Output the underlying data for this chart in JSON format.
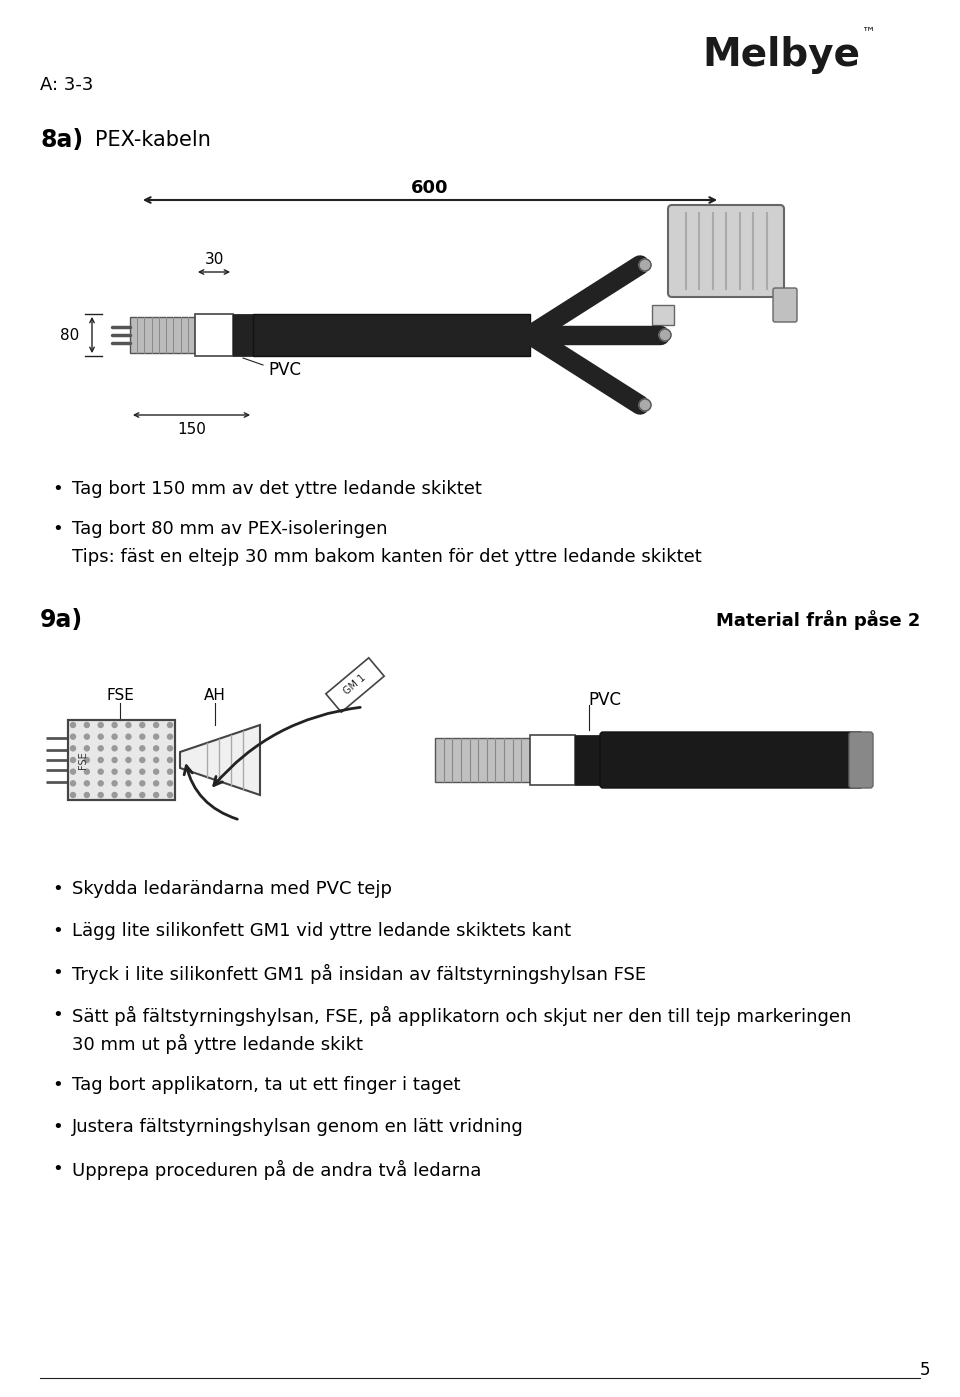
{
  "page_num": "5",
  "header_ref": "A: 3-3",
  "logo_text": "Melbye",
  "section8a_label": "8a)",
  "section8a_title": "PEX-kabeln",
  "dim_600": "600",
  "dim_30": "30",
  "dim_80": "80",
  "dim_150": "150",
  "label_PVC_8a": "PVC",
  "bullets_8a_line1": "Tag bort 150 mm av det yttre ledande skiktet",
  "bullets_8a_line2": "Tag bort 80 mm av PEX-isoleringen",
  "bullets_8a_line2b": "Tips: fäst en eltejp 30 mm bakom kanten för det yttre ledande skiktet",
  "section9a_label": "9a)",
  "section9a_material": "Material från påse 2",
  "label_FSE": "FSE",
  "label_AH": "AH",
  "label_GM1": "GM 1",
  "label_PVC_9a": "PVC",
  "bullets_9a": [
    "Skydda ledarändarna med PVC tejp",
    "Lägg lite silikonfett GM1 vid yttre ledande skiktets kant",
    "Tryck i lite silikonfett GM1 på insidan av fältstyrningshylsan FSE",
    "Sätt på fältstyrningshylsan, FSE, på applikatorn och skjut ner den till tejp markeringen",
    "30 mm ut på yttre ledande skikt",
    "Tag bort applikatorn, ta ut ett finger i taget",
    "Justera fältstyrningshylsan genom en lätt vridning",
    "Upprepa proceduren på de andra två ledarna"
  ],
  "bg_color": "#ffffff",
  "text_color": "#000000"
}
